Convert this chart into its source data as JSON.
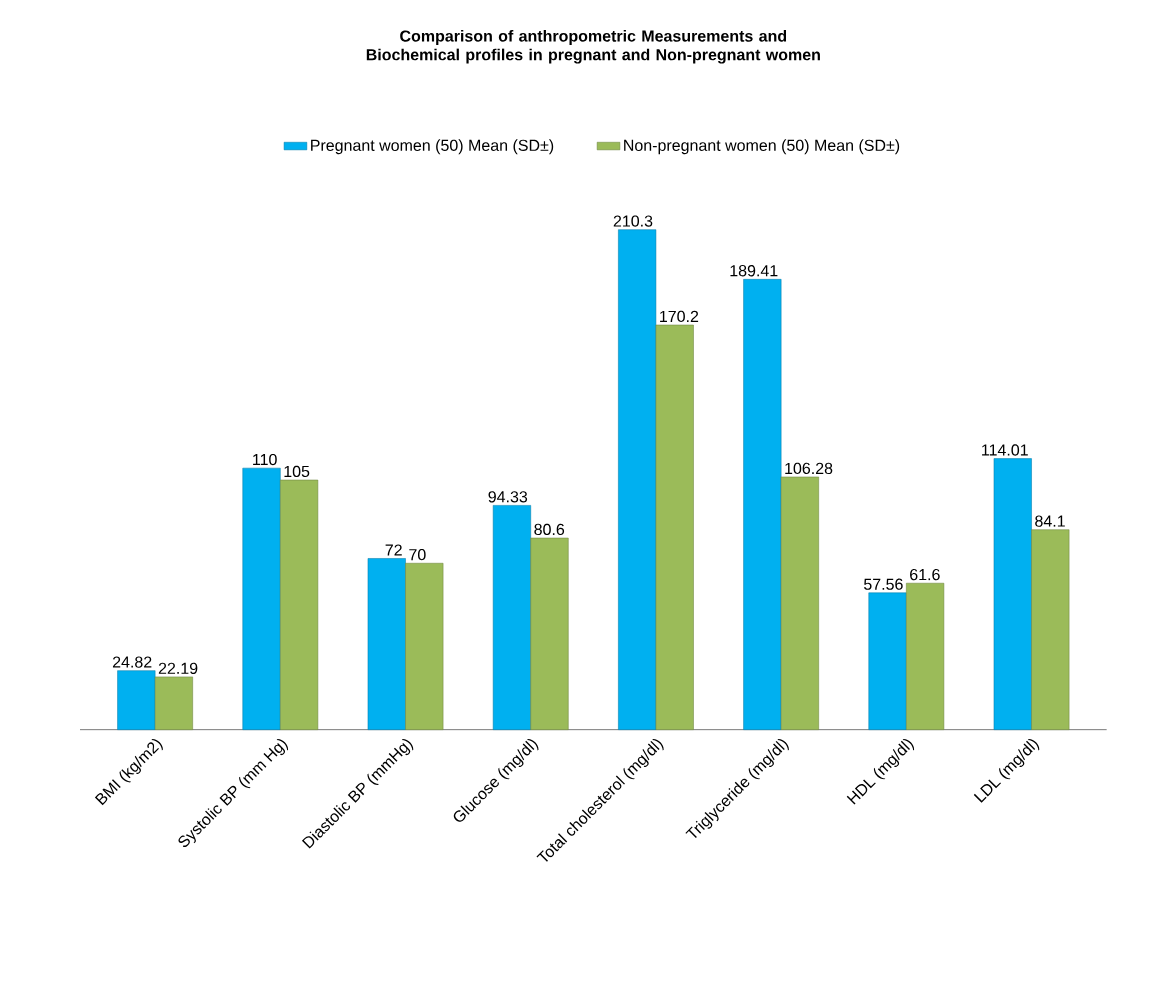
{
  "chart_data": {
    "type": "bar",
    "title": "Comparison of anthropometric Measurements and Biochemical profiles in pregnant and Non-pregnant women",
    "categories": [
      "BMI (kg/m2)",
      "Systolic BP (mm Hg)",
      "Diastolic BP (mmHg)",
      "Glucose (mg/dl)",
      "Total cholesterol (mg/dl)",
      "Triglyceride (mg/dl)",
      "HDL (mg/dl)",
      "LDL (mg/dl)"
    ],
    "series": [
      {
        "name": "Pregnant women (50) Mean (SD±)",
        "color": "#00b0f0",
        "values": [
          24.82,
          110,
          72,
          94.33,
          210.3,
          189.41,
          57.56,
          114.01
        ]
      },
      {
        "name": "Non-pregnant women (50) Mean (SD±)",
        "color": "#9bbb59",
        "values": [
          22.19,
          105,
          70,
          80.6,
          170.2,
          106.28,
          61.6,
          84.1
        ]
      }
    ],
    "data_labels": true,
    "legend": "top"
  }
}
